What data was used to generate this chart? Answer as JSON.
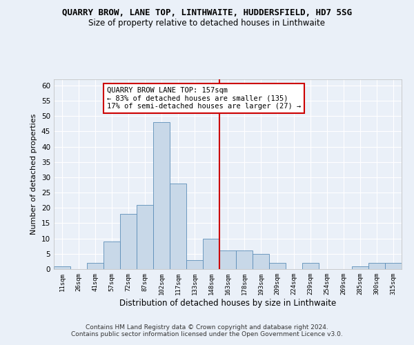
{
  "title": "QUARRY BROW, LANE TOP, LINTHWAITE, HUDDERSFIELD, HD7 5SG",
  "subtitle": "Size of property relative to detached houses in Linthwaite",
  "xlabel": "Distribution of detached houses by size in Linthwaite",
  "ylabel": "Number of detached properties",
  "footer1": "Contains HM Land Registry data © Crown copyright and database right 2024.",
  "footer2": "Contains public sector information licensed under the Open Government Licence v3.0.",
  "bin_labels": [
    "11sqm",
    "26sqm",
    "41sqm",
    "57sqm",
    "72sqm",
    "87sqm",
    "102sqm",
    "117sqm",
    "133sqm",
    "148sqm",
    "163sqm",
    "178sqm",
    "193sqm",
    "209sqm",
    "224sqm",
    "239sqm",
    "254sqm",
    "269sqm",
    "285sqm",
    "300sqm",
    "315sqm"
  ],
  "bar_heights": [
    1,
    0,
    2,
    9,
    18,
    21,
    48,
    28,
    3,
    10,
    6,
    6,
    5,
    2,
    0,
    2,
    0,
    0,
    1,
    2,
    2
  ],
  "bar_color": "#c8d8e8",
  "bar_edge_color": "#5b8db8",
  "ylim": [
    0,
    62
  ],
  "yticks": [
    0,
    5,
    10,
    15,
    20,
    25,
    30,
    35,
    40,
    45,
    50,
    55,
    60
  ],
  "vline_color": "#cc0000",
  "annotation_line1": "QUARRY BROW LANE TOP: 157sqm",
  "annotation_line2": "← 83% of detached houses are smaller (135)",
  "annotation_line3": "17% of semi-detached houses are larger (27) →",
  "annotation_box_color": "#ffffff",
  "annotation_box_edge": "#cc0000",
  "bg_color": "#eaf0f8",
  "plot_bg_color": "#eaf0f8",
  "grid_color": "#ffffff",
  "title_fontsize": 9,
  "subtitle_fontsize": 8.5,
  "annot_fontsize": 7.5,
  "footer_fontsize": 6.5,
  "ylabel_fontsize": 8,
  "xlabel_fontsize": 8.5
}
